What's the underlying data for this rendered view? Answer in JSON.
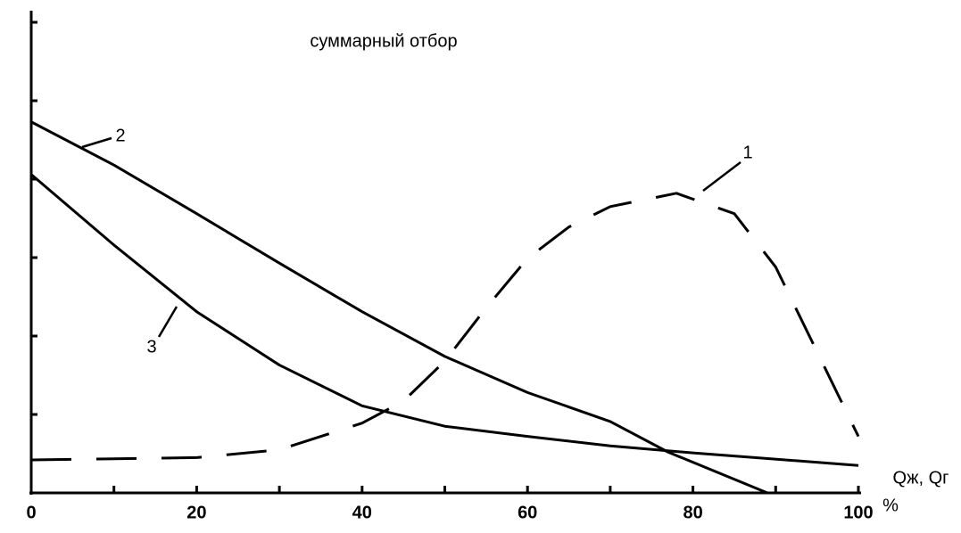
{
  "chart_data": {
    "type": "line",
    "title": "суммарный отбор",
    "x_label": "Qж, Qг",
    "x_unit": "%",
    "xlim": [
      0,
      100
    ],
    "xticks": [
      0,
      20,
      40,
      60,
      80,
      100
    ],
    "xminorticks": [
      10,
      30,
      50,
      70,
      90
    ],
    "ylim": [
      0,
      6.1
    ],
    "yticks": [
      0,
      1,
      2,
      3,
      4,
      5,
      6
    ],
    "series": [
      {
        "name": "1",
        "color": "#000000",
        "dashed": true,
        "x": [
          0,
          20,
          30,
          40,
          45,
          50,
          55,
          60,
          65,
          70,
          78,
          85,
          90,
          95,
          100
        ],
        "values": [
          0.42,
          0.45,
          0.55,
          0.89,
          1.17,
          1.68,
          2.36,
          2.99,
          3.39,
          3.65,
          3.82,
          3.56,
          2.88,
          1.8,
          0.72
        ]
      },
      {
        "name": "2",
        "color": "#000000",
        "dashed": false,
        "x": [
          0,
          10,
          20,
          30,
          40,
          50,
          60,
          70,
          77,
          89
        ],
        "values": [
          4.73,
          4.18,
          3.56,
          2.93,
          2.31,
          1.74,
          1.28,
          0.91,
          0.52,
          0
        ]
      },
      {
        "name": "3",
        "color": "#000000",
        "dashed": false,
        "x": [
          0,
          10,
          20,
          30,
          40,
          50,
          60,
          70,
          80,
          100
        ],
        "values": [
          4.06,
          3.16,
          2.31,
          1.63,
          1.11,
          0.85,
          0.72,
          0.6,
          0.51,
          0.35
        ]
      }
    ]
  }
}
